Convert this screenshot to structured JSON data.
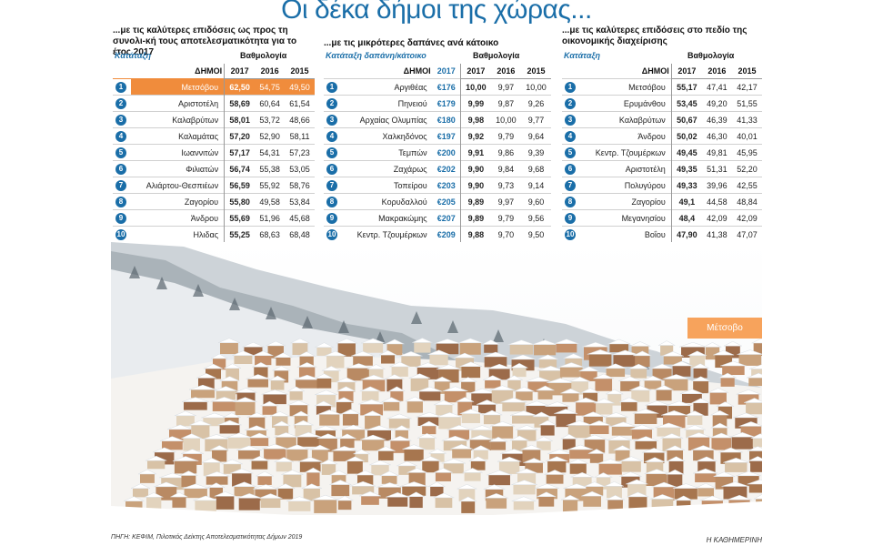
{
  "headline": "Οι δέκα δήμοι της χώρας...",
  "panel1": {
    "title": "...με τις καλύτερες επιδόσεις ως προς τη συνολι-κή τους αποτελεσματικότητα για το έτος 2017",
    "rank_label": "Κατάταξη",
    "score_label": "Βαθμολογία",
    "col_name": "ΔΗΜΟΙ",
    "years": [
      "2017",
      "2016",
      "2015"
    ],
    "rows": [
      {
        "rank": "1",
        "name": "Μετσόβου",
        "v2017": "62,50",
        "v2016": "54,75",
        "v2015": "49,50"
      },
      {
        "rank": "2",
        "name": "Αριστοτέλη",
        "v2017": "58,69",
        "v2016": "60,64",
        "v2015": "61,54"
      },
      {
        "rank": "3",
        "name": "Καλαβρύτων",
        "v2017": "58,01",
        "v2016": "53,72",
        "v2015": "48,66"
      },
      {
        "rank": "4",
        "name": "Καλαμάτας",
        "v2017": "57,20",
        "v2016": "52,90",
        "v2015": "58,11"
      },
      {
        "rank": "5",
        "name": "Ιωαννιτών",
        "v2017": "57,17",
        "v2016": "54,31",
        "v2015": "57,23"
      },
      {
        "rank": "6",
        "name": "Φιλιατών",
        "v2017": "56,74",
        "v2016": "55,38",
        "v2015": "53,05"
      },
      {
        "rank": "7",
        "name": "Αλιάρτου-Θεσπιέων",
        "v2017": "56,59",
        "v2016": "55,92",
        "v2015": "58,76"
      },
      {
        "rank": "8",
        "name": "Ζαγορίου",
        "v2017": "55,80",
        "v2016": "49,58",
        "v2015": "53,84"
      },
      {
        "rank": "9",
        "name": "Άνδρου",
        "v2017": "55,69",
        "v2016": "51,96",
        "v2015": "45,68"
      },
      {
        "rank": "10",
        "name": "Ηλιδας",
        "v2017": "55,25",
        "v2016": "68,63",
        "v2015": "68,48"
      }
    ]
  },
  "panel2": {
    "title": "...με τις μικρότερες δαπάνες ανά κάτοικο",
    "rank_label": "Κατάταξη  δαπάνη/κάτοικο",
    "score_label": "Βαθμολογία",
    "col_name": "ΔΗΜΟΙ",
    "cost_year": "2017",
    "years": [
      "2017",
      "2016",
      "2015"
    ],
    "rows": [
      {
        "rank": "1",
        "name": "Αργιθέας",
        "cost": "€176",
        "v2017": "10,00",
        "v2016": "9,97",
        "v2015": "10,00"
      },
      {
        "rank": "2",
        "name": "Πηνειού",
        "cost": "€179",
        "v2017": "9,99",
        "v2016": "9,87",
        "v2015": "9,26"
      },
      {
        "rank": "3",
        "name": "Αρχαίας Ολυμπίας",
        "cost": "€180",
        "v2017": "9,98",
        "v2016": "10,00",
        "v2015": "9,77"
      },
      {
        "rank": "4",
        "name": "Χαλκηδόνος",
        "cost": "€197",
        "v2017": "9,92",
        "v2016": "9,79",
        "v2015": "9,64"
      },
      {
        "rank": "5",
        "name": "Τεμπών",
        "cost": "€200",
        "v2017": "9,91",
        "v2016": "9,86",
        "v2015": "9,39"
      },
      {
        "rank": "6",
        "name": "Ζαχάρως",
        "cost": "€202",
        "v2017": "9,90",
        "v2016": "9,84",
        "v2015": "9,68"
      },
      {
        "rank": "7",
        "name": "Τοπείρου",
        "cost": "€203",
        "v2017": "9,90",
        "v2016": "9,73",
        "v2015": "9,14"
      },
      {
        "rank": "8",
        "name": "Κορυδαλλού",
        "cost": "€205",
        "v2017": "9,89",
        "v2016": "9,97",
        "v2015": "9,60"
      },
      {
        "rank": "9",
        "name": "Μακρακώμης",
        "cost": "€207",
        "v2017": "9,89",
        "v2016": "9,79",
        "v2015": "9,56"
      },
      {
        "rank": "10",
        "name": "Κεντρ. Τζουμέρκων",
        "cost": "€209",
        "v2017": "9,88",
        "v2016": "9,70",
        "v2015": "9,50"
      }
    ]
  },
  "panel3": {
    "title": "...με τις καλύτερες επιδόσεις στο πεδίο της οικονομικής διαχείρισης",
    "rank_label": "Κατάταξη",
    "score_label": "Βαθμολογία",
    "col_name": "ΔΗΜΟΙ",
    "years": [
      "2017",
      "2016",
      "2015"
    ],
    "rows": [
      {
        "rank": "1",
        "name": "Μετσόβου",
        "v2017": "55,17",
        "v2016": "47,41",
        "v2015": "42,17"
      },
      {
        "rank": "2",
        "name": "Ερυμάνθου",
        "v2017": "53,45",
        "v2016": "49,20",
        "v2015": "51,55"
      },
      {
        "rank": "3",
        "name": "Καλαβρύτων",
        "v2017": "50,67",
        "v2016": "46,39",
        "v2015": "41,33"
      },
      {
        "rank": "4",
        "name": "Άνδρου",
        "v2017": "50,02",
        "v2016": "46,30",
        "v2015": "40,01"
      },
      {
        "rank": "5",
        "name": "Κεντρ. Τζουμέρκων",
        "v2017": "49,45",
        "v2016": "49,81",
        "v2015": "45,95"
      },
      {
        "rank": "6",
        "name": "Αριστοτέλη",
        "v2017": "49,35",
        "v2016": "51,31",
        "v2015": "52,20"
      },
      {
        "rank": "7",
        "name": "Πολυγύρου",
        "v2017": "49,33",
        "v2016": "39,96",
        "v2015": "42,55"
      },
      {
        "rank": "8",
        "name": "Ζαγορίου",
        "v2017": "49,1",
        "v2016": "44,58",
        "v2015": "48,84"
      },
      {
        "rank": "9",
        "name": "Μεγανησίου",
        "v2017": "48,4",
        "v2016": "42,09",
        "v2015": "42,09"
      },
      {
        "rank": "10",
        "name": "Βοΐου",
        "v2017": "47,90",
        "v2016": "41,38",
        "v2015": "47,07"
      }
    ]
  },
  "photo_tag": "Μέτσοβο",
  "source": "ΠΗΓΗ: ΚΕΦΙΜ, Πιλοτικός Δείκτης Αποτελεσματικότητας Δήμων 2019",
  "credit": "Η ΚΑΘΗΜΕΡΙΝΗ",
  "colors": {
    "accent": "#1a6ea8",
    "highlight": "#f08c3c",
    "tag": "#f7a35c"
  }
}
